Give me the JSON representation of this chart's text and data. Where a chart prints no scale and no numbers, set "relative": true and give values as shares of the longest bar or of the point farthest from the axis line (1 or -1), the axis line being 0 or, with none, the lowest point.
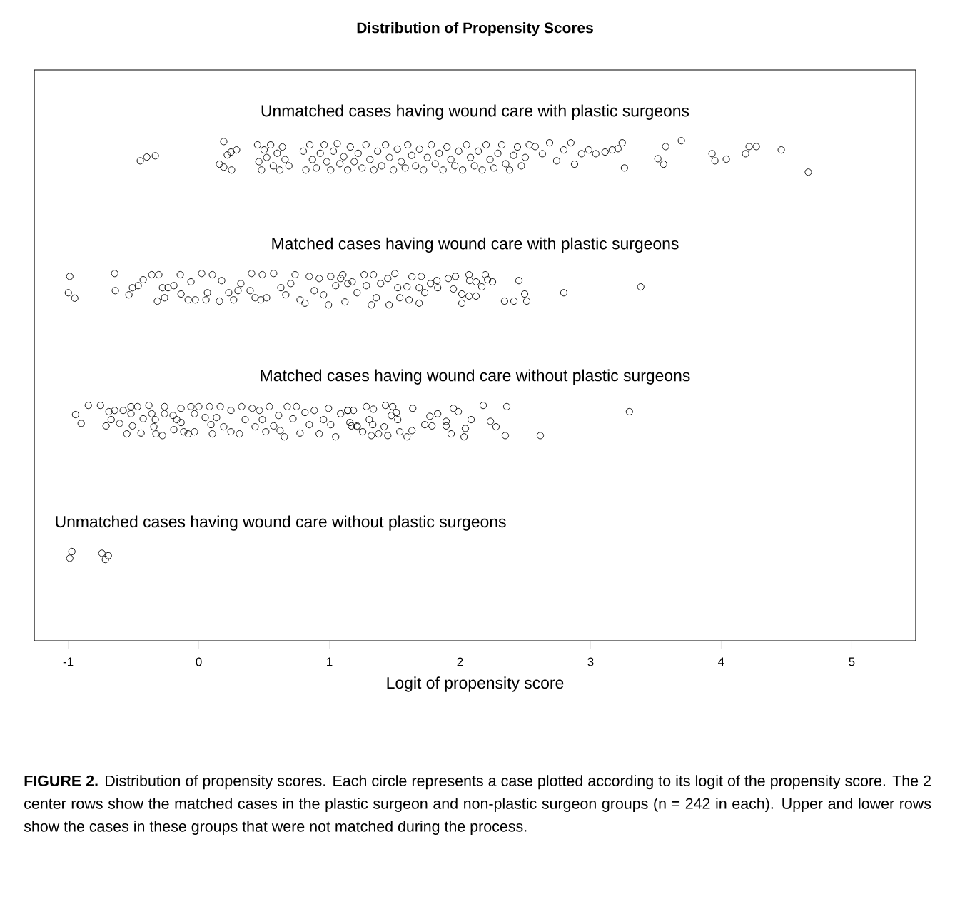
{
  "chart_data": {
    "type": "scatter",
    "title": "Distribution of Propensity Scores",
    "xlabel": "Logit of propensity score",
    "relative": true,
    "marker": "circle",
    "tick_labels": "x",
    "xlim": [
      -1.26,
      5.49
    ],
    "xticks": [
      -1,
      0,
      1,
      2,
      3,
      4,
      5
    ],
    "annotations": [
      "**FIGURE 2.** Distribution of propensity scores. Each circle represents a case plotted according to its logit of the propensity score. The 2 center rows show the matched cases in the plastic surgeon and non-plastic surgeon groups (n = 242 in each). Upper and lower rows show the cases in these groups that were not matched during the process."
    ],
    "series": [
      {
        "name": "Unmatched cases having wound care with plastic surgeons",
        "color": "#000000",
        "x": [
          -0.448,
          -0.398,
          -0.333,
          0.158,
          0.191,
          0.191,
          0.218,
          0.246,
          0.251,
          0.289,
          0.45,
          0.46,
          0.48,
          0.5,
          0.52,
          0.55,
          0.57,
          0.6,
          0.62,
          0.64,
          0.66,
          0.69,
          0.8,
          0.82,
          0.85,
          0.87,
          0.9,
          0.93,
          0.96,
          0.98,
          1.01,
          1.03,
          1.06,
          1.08,
          1.11,
          1.14,
          1.16,
          1.19,
          1.22,
          1.25,
          1.28,
          1.31,
          1.34,
          1.37,
          1.4,
          1.43,
          1.46,
          1.49,
          1.52,
          1.55,
          1.58,
          1.6,
          1.63,
          1.66,
          1.69,
          1.72,
          1.75,
          1.78,
          1.81,
          1.84,
          1.87,
          1.9,
          1.93,
          1.96,
          1.99,
          2.02,
          2.05,
          2.08,
          2.11,
          2.14,
          2.17,
          2.2,
          2.23,
          2.26,
          2.29,
          2.32,
          2.35,
          2.38,
          2.41,
          2.44,
          2.47,
          2.5,
          2.53,
          2.576,
          2.631,
          2.686,
          2.74,
          2.795,
          2.849,
          2.877,
          2.931,
          2.986,
          3.04,
          3.111,
          3.166,
          3.21,
          3.242,
          3.259,
          3.515,
          3.559,
          3.575,
          3.695,
          3.93,
          3.952,
          4.039,
          4.187,
          4.214,
          4.269,
          4.46,
          4.667
        ],
        "values": [
          0.952,
          0.961,
          0.964,
          0.944,
          0.937,
          0.998,
          0.966,
          0.973,
          0.93,
          0.978,
          0.99,
          0.95,
          0.93,
          0.978,
          0.96,
          0.99,
          0.94,
          0.97,
          0.93,
          0.985,
          0.955,
          0.94,
          0.975,
          0.93,
          0.99,
          0.955,
          0.935,
          0.97,
          0.99,
          0.95,
          0.93,
          0.975,
          0.993,
          0.945,
          0.962,
          0.93,
          0.985,
          0.95,
          0.97,
          0.935,
          0.99,
          0.955,
          0.93,
          0.975,
          0.94,
          0.99,
          0.96,
          0.93,
          0.98,
          0.95,
          0.935,
          0.99,
          0.965,
          0.94,
          0.98,
          0.93,
          0.96,
          0.99,
          0.945,
          0.97,
          0.93,
          0.985,
          0.955,
          0.94,
          0.975,
          0.93,
          0.99,
          0.96,
          0.94,
          0.975,
          0.93,
          0.99,
          0.955,
          0.935,
          0.97,
          0.99,
          0.945,
          0.93,
          0.965,
          0.985,
          0.94,
          0.96,
          0.99,
          0.986,
          0.969,
          0.995,
          0.952,
          0.978,
          0.995,
          0.944,
          0.969,
          0.978,
          0.969,
          0.973,
          0.978,
          0.981,
          0.995,
          0.935,
          0.957,
          0.944,
          0.986,
          1.0,
          0.969,
          0.952,
          0.956,
          0.969,
          0.986,
          0.986,
          0.978,
          0.925
        ]
      },
      {
        "name": "Matched cases having wound care with plastic surgeons",
        "color": "#000000",
        "x": [
          -0.988,
          -0.999,
          -0.95,
          -0.644,
          -0.639,
          -0.535,
          -0.508,
          -0.464,
          -0.426,
          -0.36,
          -0.306,
          -0.317,
          -0.262,
          -0.278,
          -0.235,
          -0.191,
          -0.142,
          -0.136,
          -0.06,
          -0.082,
          -0.027,
          0.022,
          0.104,
          0.175,
          0.066,
          0.055,
          0.158,
          0.229,
          0.267,
          0.322,
          0.3,
          0.404,
          0.393,
          0.431,
          0.475,
          0.519,
          0.486,
          0.573,
          0.628,
          0.666,
          0.704,
          0.737,
          0.775,
          0.813,
          0.846,
          0.884,
          0.922,
          0.955,
          0.993,
          1.01,
          1.048,
          1.086,
          1.103,
          1.119,
          1.174,
          1.212,
          1.141,
          1.266,
          1.337,
          1.283,
          1.321,
          1.359,
          1.392,
          1.447,
          1.457,
          1.501,
          1.523,
          1.539,
          1.594,
          1.632,
          1.61,
          1.687,
          1.703,
          1.73,
          1.687,
          1.774,
          1.823,
          1.829,
          1.91,
          1.965,
          1.949,
          2.014,
          2.014,
          2.069,
          2.074,
          2.123,
          2.069,
          2.123,
          2.167,
          2.194,
          2.249,
          2.211,
          2.341,
          2.413,
          2.451,
          2.495,
          2.511,
          2.795,
          3.384
        ],
        "values": [
          0.676,
          0.637,
          0.624,
          0.683,
          0.642,
          0.632,
          0.649,
          0.654,
          0.668,
          0.68,
          0.68,
          0.617,
          0.625,
          0.649,
          0.649,
          0.654,
          0.68,
          0.634,
          0.663,
          0.62,
          0.62,
          0.683,
          0.68,
          0.666,
          0.637,
          0.62,
          0.617,
          0.637,
          0.62,
          0.659,
          0.642,
          0.683,
          0.642,
          0.625,
          0.62,
          0.625,
          0.68,
          0.683,
          0.649,
          0.632,
          0.659,
          0.68,
          0.62,
          0.612,
          0.676,
          0.642,
          0.671,
          0.632,
          0.608,
          0.676,
          0.654,
          0.671,
          0.68,
          0.615,
          0.663,
          0.637,
          0.659,
          0.68,
          0.68,
          0.654,
          0.608,
          0.625,
          0.659,
          0.671,
          0.608,
          0.683,
          0.649,
          0.625,
          0.651,
          0.675,
          0.62,
          0.649,
          0.676,
          0.637,
          0.612,
          0.659,
          0.666,
          0.649,
          0.671,
          0.676,
          0.646,
          0.634,
          0.612,
          0.68,
          0.666,
          0.663,
          0.629,
          0.629,
          0.651,
          0.68,
          0.663,
          0.668,
          0.617,
          0.617,
          0.666,
          0.634,
          0.617,
          0.637,
          0.651
        ]
      },
      {
        "name": "Matched cases having wound care without plastic surgeons",
        "color": "#000000",
        "x": [
          -0.944,
          -0.901,
          -0.846,
          -0.753,
          -0.688,
          -0.644,
          -0.579,
          -0.519,
          -0.469,
          -0.519,
          -0.671,
          -0.71,
          -0.606,
          -0.551,
          -0.508,
          -0.442,
          -0.426,
          -0.382,
          -0.36,
          -0.333,
          -0.344,
          -0.328,
          -0.278,
          -0.262,
          -0.262,
          -0.197,
          -0.169,
          -0.191,
          -0.136,
          -0.136,
          -0.115,
          -0.082,
          -0.033,
          -0.06,
          0.0,
          -0.033,
          0.049,
          0.093,
          0.104,
          0.082,
          0.164,
          0.136,
          0.191,
          0.246,
          0.246,
          0.311,
          0.328,
          0.355,
          0.409,
          0.431,
          0.464,
          0.486,
          0.513,
          0.54,
          0.573,
          0.611,
          0.622,
          0.677,
          0.655,
          0.721,
          0.748,
          0.775,
          0.813,
          0.846,
          0.884,
          0.922,
          0.955,
          0.993,
          1.01,
          1.048,
          1.086,
          1.141,
          1.157,
          1.212,
          1.141,
          1.184,
          1.168,
          1.212,
          1.255,
          1.283,
          1.337,
          1.305,
          1.332,
          1.321,
          1.376,
          1.43,
          1.485,
          1.474,
          1.512,
          1.419,
          1.447,
          1.523,
          1.539,
          1.594,
          1.632,
          1.638,
          1.73,
          1.769,
          1.785,
          1.829,
          1.894,
          1.894,
          1.932,
          1.949,
          1.987,
          2.041,
          2.031,
          2.085,
          2.178,
          2.233,
          2.276,
          2.347,
          2.358,
          2.615,
          3.297
        ],
        "values": [
          0.346,
          0.325,
          0.368,
          0.368,
          0.353,
          0.356,
          0.356,
          0.365,
          0.365,
          0.348,
          0.334,
          0.319,
          0.325,
          0.3,
          0.319,
          0.302,
          0.336,
          0.368,
          0.348,
          0.334,
          0.317,
          0.3,
          0.296,
          0.365,
          0.348,
          0.344,
          0.334,
          0.31,
          0.327,
          0.361,
          0.305,
          0.3,
          0.305,
          0.365,
          0.365,
          0.348,
          0.339,
          0.322,
          0.3,
          0.365,
          0.365,
          0.339,
          0.317,
          0.305,
          0.356,
          0.3,
          0.365,
          0.334,
          0.361,
          0.317,
          0.356,
          0.334,
          0.305,
          0.365,
          0.319,
          0.344,
          0.308,
          0.365,
          0.293,
          0.336,
          0.365,
          0.302,
          0.351,
          0.322,
          0.356,
          0.3,
          0.334,
          0.361,
          0.322,
          0.293,
          0.348,
          0.356,
          0.327,
          0.319,
          0.356,
          0.356,
          0.319,
          0.317,
          0.305,
          0.365,
          0.359,
          0.334,
          0.322,
          0.296,
          0.3,
          0.368,
          0.365,
          0.344,
          0.351,
          0.317,
          0.296,
          0.334,
          0.305,
          0.293,
          0.308,
          0.361,
          0.322,
          0.342,
          0.319,
          0.348,
          0.33,
          0.319,
          0.3,
          0.361,
          0.353,
          0.313,
          0.293,
          0.334,
          0.368,
          0.33,
          0.317,
          0.296,
          0.365,
          0.296,
          0.353
        ]
      },
      {
        "name": "Unmatched cases having wound care without plastic surgeons",
        "color": "#000000",
        "x": [
          -0.988,
          -0.972,
          -0.742,
          -0.715,
          -0.693
        ],
        "values": [
          0.003,
          0.019,
          0.015,
          0.0,
          0.009
        ]
      }
    ]
  }
}
